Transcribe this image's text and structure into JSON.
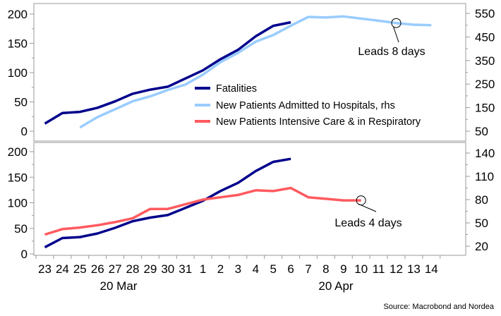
{
  "source": "Source: Macrobond and Nordea",
  "colors": {
    "fatalities": "#00008C",
    "admitted": "#99CCFF",
    "icu": "#FF5A5F",
    "frame": "#9a9a9a"
  },
  "chart_data": [
    {
      "type": "line",
      "panel": "top",
      "x": [
        "23",
        "24",
        "25",
        "26",
        "27",
        "28",
        "29",
        "30",
        "31",
        "1",
        "2",
        "3",
        "4",
        "5",
        "6",
        "7",
        "8",
        "9",
        "10",
        "11",
        "12",
        "13",
        "14"
      ],
      "x_major_labels": [
        "20 Mar",
        "20 Apr"
      ],
      "ylim_left": [
        0,
        200
      ],
      "yticks_left": [
        0,
        50,
        100,
        150,
        200
      ],
      "ylim_right": [
        0,
        550
      ],
      "yticks_right": [
        50,
        150,
        250,
        350,
        450,
        550
      ],
      "grid": false,
      "legend": "bottom-right",
      "series": [
        {
          "name": "Fatalities",
          "axis": "left",
          "color": "#00008C",
          "values": [
            13,
            31,
            33,
            40,
            51,
            64,
            71,
            76,
            90,
            104,
            123,
            139,
            162,
            180,
            186,
            null,
            null,
            null,
            null,
            null,
            null,
            null,
            null
          ]
        },
        {
          "name": "New Patients Admitted to Hospitals, rhs",
          "axis": "right",
          "color": "#99CCFF",
          "values": [
            null,
            null,
            66,
            110,
            143,
            177,
            198,
            225,
            248,
            290,
            343,
            383,
            430,
            458,
            498,
            535,
            533,
            537,
            528,
            519,
            509,
            502,
            500
          ]
        }
      ],
      "annotations": [
        {
          "text": "Leads 8 days",
          "x": "12",
          "y": 509,
          "axis": "right"
        }
      ]
    },
    {
      "type": "line",
      "panel": "bottom",
      "x": [
        "23",
        "24",
        "25",
        "26",
        "27",
        "28",
        "29",
        "30",
        "31",
        "1",
        "2",
        "3",
        "4",
        "5",
        "6",
        "7",
        "8",
        "9",
        "10",
        "11",
        "12",
        "13",
        "14"
      ],
      "x_major_labels": [
        "20 Mar",
        "20 Apr"
      ],
      "ylim_left": [
        0,
        200
      ],
      "yticks_left": [
        0,
        50,
        100,
        150,
        200
      ],
      "ylim_right": [
        20,
        140
      ],
      "yticks_right": [
        20,
        50,
        80,
        110,
        140
      ],
      "grid": false,
      "legend": "top-right",
      "series": [
        {
          "name": "Fatalities",
          "axis": "left",
          "color": "#00008C",
          "values": [
            13,
            31,
            33,
            40,
            51,
            64,
            71,
            76,
            90,
            104,
            123,
            139,
            162,
            180,
            186,
            null,
            null,
            null,
            null,
            null,
            null,
            null,
            null
          ]
        },
        {
          "name": "New Patients Intensive Care & in Respiratory",
          "axis": "right",
          "color": "#FF5A5F",
          "values": [
            35,
            42,
            44,
            47,
            51,
            56,
            68,
            68,
            74,
            80,
            83,
            86,
            92,
            91,
            95,
            83,
            81,
            79,
            79,
            null,
            null,
            null,
            null
          ]
        }
      ],
      "annotations": [
        {
          "text": "Leads 4 days",
          "x": "10",
          "y": 79,
          "axis": "right"
        }
      ]
    }
  ]
}
